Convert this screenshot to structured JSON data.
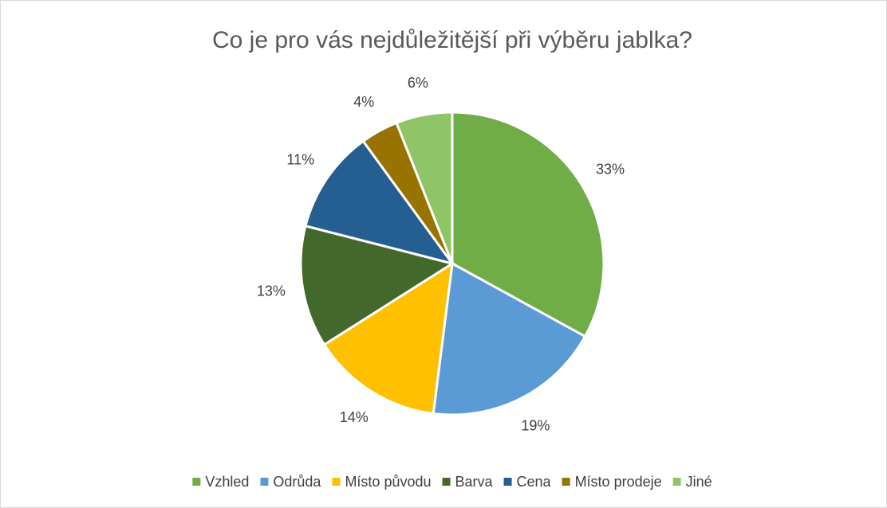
{
  "chart_data": {
    "type": "pie",
    "title": "Co je pro vás nejdůležitější při výběru jablka?",
    "categories": [
      "Vzhled",
      "Odrůda",
      "Místo původu",
      "Barva",
      "Cena",
      "Místo prodeje",
      "Jiné"
    ],
    "values": [
      33,
      19,
      14,
      13,
      11,
      4,
      6
    ],
    "value_labels": [
      "33%",
      "19%",
      "14%",
      "13%",
      "11%",
      "4%",
      "6%"
    ],
    "colors": [
      "#70ad47",
      "#5b9bd5",
      "#ffc000",
      "#43682b",
      "#255e91",
      "#997300",
      "#8fc566"
    ],
    "legend": "bottom"
  }
}
